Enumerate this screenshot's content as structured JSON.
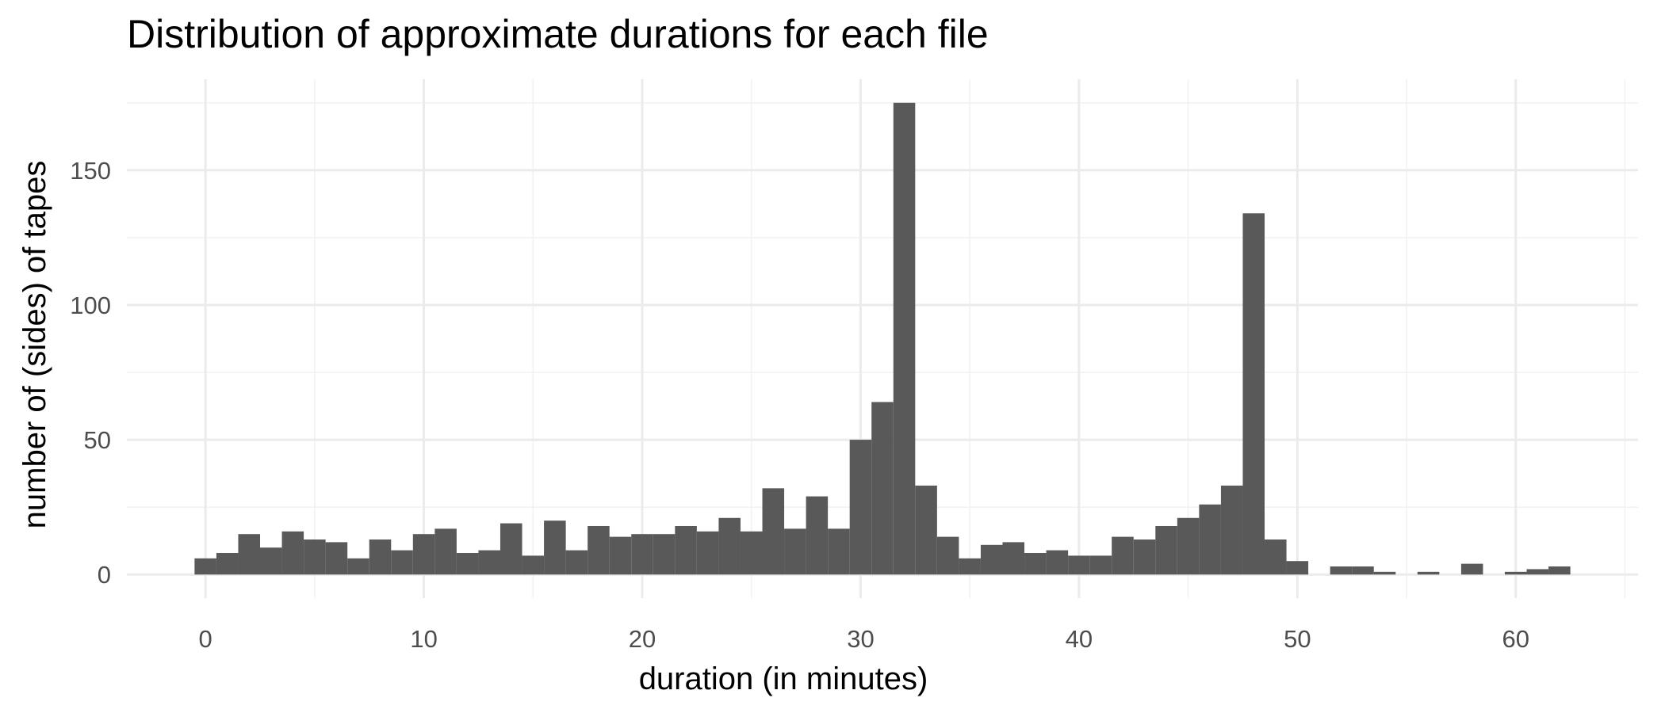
{
  "chart_data": {
    "type": "bar",
    "subtype": "histogram",
    "title": "Distribution of approximate durations for each file",
    "xlabel": "duration (in minutes)",
    "ylabel": "number of (sides) of tapes",
    "xlim": [
      -3.6,
      65.6
    ],
    "ylim": [
      -8.75,
      183.75
    ],
    "xticks": [
      0,
      10,
      20,
      30,
      40,
      50,
      60
    ],
    "xtick_labels": [
      "0",
      "10",
      "20",
      "30",
      "40",
      "50",
      "60"
    ],
    "yticks": [
      0,
      50,
      100,
      150
    ],
    "ytick_labels": [
      "0",
      "50",
      "100",
      "150"
    ],
    "bin_width": 1,
    "bin_start": -0.5,
    "grid": true,
    "legend": "none",
    "bar_color": "#595959",
    "x": [
      0,
      1,
      2,
      3,
      4,
      5,
      6,
      7,
      8,
      9,
      10,
      11,
      12,
      13,
      14,
      15,
      16,
      17,
      18,
      19,
      20,
      21,
      22,
      23,
      24,
      25,
      26,
      27,
      28,
      29,
      30,
      31,
      32,
      33,
      34,
      35,
      36,
      37,
      38,
      39,
      40,
      41,
      42,
      43,
      44,
      45,
      46,
      47,
      48,
      49,
      50,
      51,
      52,
      53,
      54,
      55,
      56,
      57,
      58,
      59,
      60,
      61,
      62
    ],
    "values": [
      6,
      8,
      15,
      10,
      16,
      13,
      12,
      6,
      13,
      9,
      15,
      17,
      8,
      9,
      19,
      7,
      20,
      9,
      18,
      14,
      15,
      15,
      18,
      16,
      21,
      16,
      32,
      17,
      29,
      17,
      50,
      64,
      175,
      33,
      14,
      6,
      11,
      12,
      8,
      9,
      7,
      7,
      14,
      13,
      18,
      21,
      26,
      33,
      134,
      13,
      5,
      0,
      3,
      3,
      1,
      0,
      1,
      0,
      4,
      0,
      1,
      2,
      3
    ]
  }
}
